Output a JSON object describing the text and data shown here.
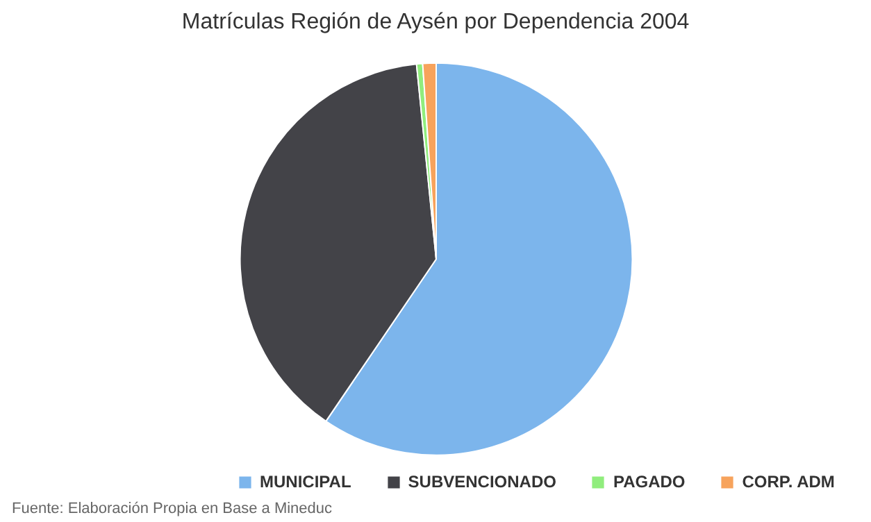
{
  "chart_data": {
    "type": "pie",
    "title": "Matrículas Región de Aysén por Dependencia 2004",
    "categories": [
      "MUNICIPAL",
      "SUBVENCIONADO",
      "PAGADO",
      "CORP. ADM"
    ],
    "values": [
      59.5,
      38.9,
      0.5,
      1.1
    ],
    "colors": [
      "#7cb5ec",
      "#434348",
      "#90ed7d",
      "#f7a35c"
    ],
    "legend": "bottom",
    "annotations": [
      "Fuente: Elaboración Propia en Base a Mineduc"
    ]
  }
}
